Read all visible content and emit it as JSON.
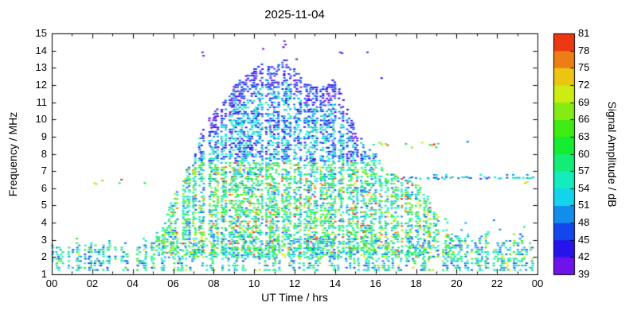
{
  "chart_data": {
    "type": "heatmap",
    "title": "2025-11-04",
    "xlabel": "UT Time / hrs",
    "ylabel": "Frequency / MHz",
    "colorbar_label": "Signal Amplitude / dB",
    "xlim": [
      0,
      24
    ],
    "ylim": [
      1,
      15
    ],
    "grid": false,
    "legend_position": "right-colorbar",
    "x_ticks": {
      "values": [
        0,
        2,
        4,
        6,
        8,
        10,
        12,
        14,
        16,
        18,
        20,
        22,
        24
      ],
      "labels": [
        "00",
        "02",
        "04",
        "06",
        "08",
        "10",
        "12",
        "14",
        "16",
        "18",
        "20",
        "22",
        "00"
      ],
      "minor_step": 1
    },
    "y_ticks": {
      "values": [
        1,
        2,
        3,
        4,
        5,
        6,
        7,
        8,
        9,
        10,
        11,
        12,
        13,
        14,
        15
      ],
      "labels": [
        "1",
        "2",
        "3",
        "4",
        "5",
        "6",
        "7",
        "8",
        "9",
        "10",
        "11",
        "12",
        "13",
        "14",
        "15"
      ]
    },
    "colorbar": {
      "min": 39,
      "max": 81,
      "tick_step": 3,
      "ticks": [
        39,
        42,
        45,
        48,
        51,
        54,
        57,
        60,
        63,
        66,
        69,
        72,
        75,
        78,
        81
      ]
    },
    "envelope_max_frequency": {
      "t": [
        5.0,
        5.5,
        6.0,
        6.5,
        7.0,
        7.5,
        8.0,
        8.5,
        9.0,
        9.5,
        10.0,
        10.5,
        11.0,
        11.5,
        12.0,
        12.5,
        13.0,
        13.5,
        14.0,
        14.5,
        15.0,
        15.5,
        16.0,
        16.5,
        17.0,
        17.5,
        18.0,
        18.5,
        19.0,
        19.5,
        19.8
      ],
      "fmax": [
        3.2,
        4.0,
        5.5,
        6.5,
        8.0,
        9.5,
        10.5,
        11.0,
        12.0,
        12.5,
        13.0,
        13.3,
        13.0,
        13.6,
        13.0,
        12.2,
        12.0,
        12.0,
        12.4,
        11.0,
        9.5,
        8.5,
        8.0,
        7.0,
        6.8,
        6.5,
        6.3,
        5.8,
        4.5,
        3.8,
        3.4
      ]
    },
    "low_band": {
      "f_range": [
        1.25,
        3.3
      ],
      "density_profile": {
        "t": [
          0,
          4.5,
          5.5,
          6.5,
          16,
          19,
          24
        ],
        "v": [
          0.8,
          0.7,
          0.35,
          0.5,
          0.6,
          0.7,
          0.7
        ]
      }
    },
    "sporadic_e_line": {
      "frequency": 6.6,
      "t_range": [
        16.6,
        23.9
      ]
    },
    "cluster_8_5MHz": {
      "frequency": 8.5,
      "t_range": [
        15.9,
        19.2
      ]
    },
    "extra_points": [
      [
        7.45,
        13.9,
        40
      ],
      [
        7.5,
        13.7,
        41
      ],
      [
        10.45,
        14.1,
        40
      ],
      [
        11.5,
        14.55,
        40
      ],
      [
        11.55,
        14.35,
        41
      ],
      [
        11.45,
        14.2,
        43
      ],
      [
        12.1,
        13.5,
        46
      ],
      [
        14.25,
        13.9,
        40
      ],
      [
        14.35,
        13.85,
        42
      ],
      [
        15.6,
        13.9,
        40
      ],
      [
        16.3,
        12.4,
        44
      ],
      [
        20.55,
        8.7,
        48
      ],
      [
        2.1,
        6.3,
        72
      ],
      [
        2.2,
        6.25,
        68
      ],
      [
        2.5,
        6.45,
        74
      ],
      [
        3.35,
        6.3,
        57
      ],
      [
        3.45,
        6.5,
        80
      ],
      [
        4.6,
        6.3,
        60
      ],
      [
        23.4,
        6.3,
        74
      ],
      [
        23.5,
        6.35,
        70
      ],
      [
        18.6,
        6.6,
        52
      ],
      [
        19.0,
        6.55,
        54
      ]
    ]
  }
}
